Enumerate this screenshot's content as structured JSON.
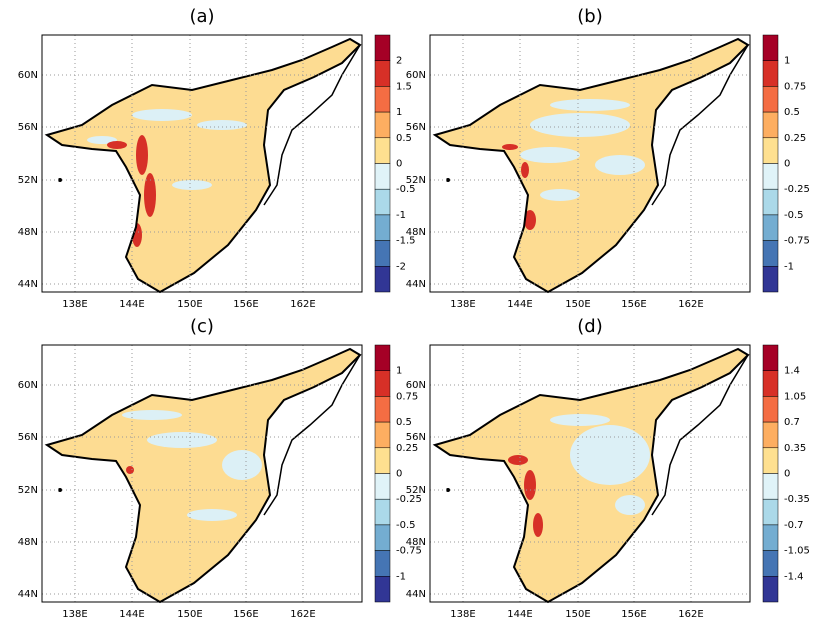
{
  "panels": [
    {
      "title": "(a)",
      "colorbar": [
        "2",
        "1.5",
        "1",
        "0.5",
        "0",
        "-0.5",
        "-1",
        "-1.5",
        "-2"
      ]
    },
    {
      "title": "(b)",
      "colorbar": [
        "1",
        "0.75",
        "0.5",
        "0.25",
        "0",
        "-0.25",
        "-0.5",
        "-0.75",
        "-1"
      ]
    },
    {
      "title": "(c)",
      "colorbar": [
        "1",
        "0.75",
        "0.5",
        "0.25",
        "0",
        "-0.25",
        "-0.5",
        "-0.75",
        "-1"
      ]
    },
    {
      "title": "(d)",
      "colorbar": [
        "1.4",
        "1.05",
        "0.7",
        "0.35",
        "0",
        "-0.35",
        "-0.7",
        "-1.05",
        "-1.4"
      ]
    }
  ],
  "lat_labels": [
    "60N",
    "56N",
    "52N",
    "48N",
    "44N"
  ],
  "lon_labels": [
    "138E",
    "144E",
    "150E",
    "156E",
    "162E"
  ]
}
